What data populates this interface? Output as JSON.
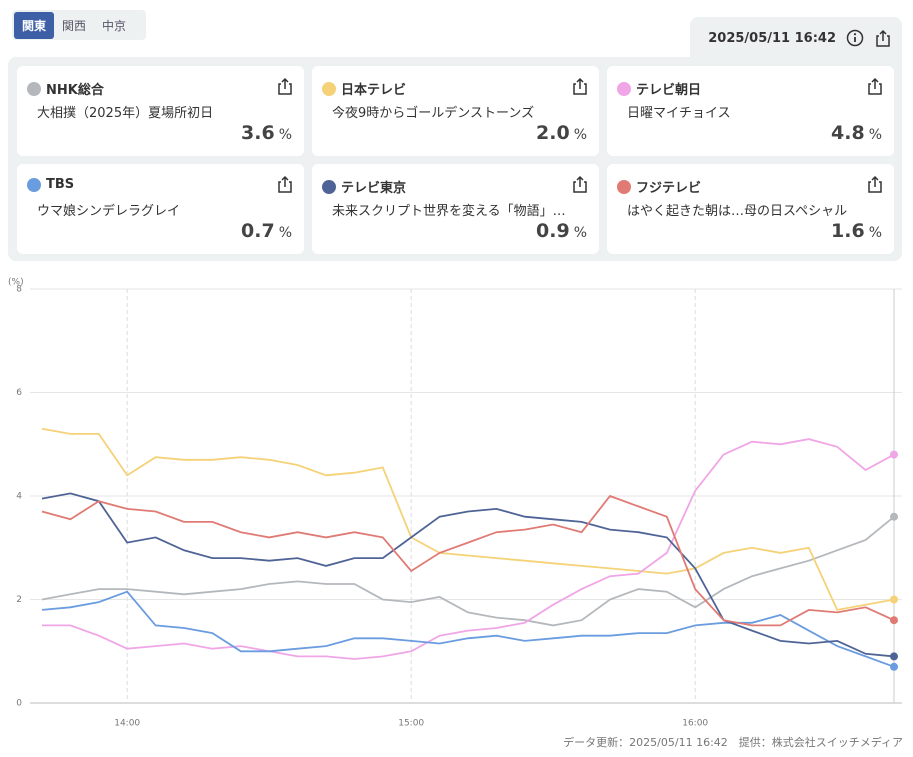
{
  "tabs": [
    "関東",
    "関西",
    "中京"
  ],
  "updated": "2025/05/11 16:42",
  "unit": "%",
  "cards": [
    {
      "name": "NHK総合",
      "program": "大相撲（2025年）夏場所初日",
      "rating": 3.6
    },
    {
      "name": "日本テレビ",
      "program": "今夜9時からゴールデンストーンズ",
      "rating": 2.0
    },
    {
      "name": "テレビ朝日",
      "program": "日曜マイチョイス",
      "rating": 4.8
    },
    {
      "name": "TBS",
      "program": "ウマ娘シンデレラグレイ",
      "rating": 0.7
    },
    {
      "name": "テレビ東京",
      "program": "未来スクリプト世界を変える「物語」…",
      "rating": 0.9
    },
    {
      "name": "フジテレビ",
      "program": "はやく起きた朝は…母の日スペシャル",
      "rating": 1.6
    }
  ],
  "footer": "データ更新：2025/05/11 16:42　提供：株式会社スイッチメディア",
  "chart_data": {
    "type": "line",
    "y_label": "(%)",
    "x": [
      "13:42",
      "13:48",
      "13:54",
      "14:00",
      "14:06",
      "14:12",
      "14:18",
      "14:24",
      "14:30",
      "14:36",
      "14:42",
      "14:48",
      "14:54",
      "15:00",
      "15:06",
      "15:12",
      "15:18",
      "15:24",
      "15:30",
      "15:36",
      "15:42",
      "15:48",
      "15:54",
      "16:00",
      "16:06",
      "16:12",
      "16:18",
      "16:24",
      "16:30",
      "16:36",
      "16:42"
    ],
    "xlim": [
      "13:42",
      "16:42"
    ],
    "xticks": [
      "14:00",
      "15:00",
      "16:00"
    ],
    "ylim": [
      0,
      8
    ],
    "yticks": [
      0,
      2,
      4,
      6,
      8
    ],
    "grid": true,
    "series": [
      {
        "color": "#b4b8bc",
        "values": [
          2.0,
          2.1,
          2.2,
          2.2,
          2.15,
          2.1,
          2.15,
          2.2,
          2.3,
          2.35,
          2.3,
          2.3,
          2.0,
          1.95,
          2.05,
          1.75,
          1.65,
          1.6,
          1.5,
          1.6,
          2.0,
          2.2,
          2.15,
          1.85,
          2.2,
          2.45,
          2.6,
          2.75,
          2.95,
          3.15,
          3.6
        ]
      },
      {
        "color": "#f5d278",
        "values": [
          5.3,
          5.2,
          5.2,
          4.4,
          4.75,
          4.7,
          4.7,
          4.75,
          4.7,
          4.6,
          4.4,
          4.45,
          4.55,
          3.2,
          2.9,
          2.85,
          2.8,
          2.75,
          2.7,
          2.65,
          2.6,
          2.55,
          2.5,
          2.6,
          2.9,
          3.0,
          2.9,
          3.0,
          1.8,
          1.9,
          2.0
        ]
      },
      {
        "color": "#f0a6e6",
        "values": [
          1.5,
          1.5,
          1.3,
          1.05,
          1.1,
          1.15,
          1.05,
          1.1,
          1.0,
          0.9,
          0.9,
          0.85,
          0.9,
          1.0,
          1.3,
          1.4,
          1.45,
          1.55,
          1.9,
          2.2,
          2.45,
          2.5,
          2.9,
          4.1,
          4.8,
          5.05,
          5.0,
          5.1,
          4.95,
          4.5,
          4.8
        ]
      },
      {
        "color": "#6a9ce0",
        "values": [
          1.8,
          1.85,
          1.95,
          2.15,
          1.5,
          1.45,
          1.35,
          1.0,
          1.0,
          1.05,
          1.1,
          1.25,
          1.25,
          1.2,
          1.15,
          1.25,
          1.3,
          1.2,
          1.25,
          1.3,
          1.3,
          1.35,
          1.35,
          1.5,
          1.55,
          1.55,
          1.7,
          1.4,
          1.1,
          0.9,
          0.7
        ]
      },
      {
        "color": "#4f6496",
        "values": [
          3.95,
          4.05,
          3.9,
          3.1,
          3.2,
          2.95,
          2.8,
          2.8,
          2.75,
          2.8,
          2.65,
          2.8,
          2.8,
          3.2,
          3.6,
          3.7,
          3.75,
          3.6,
          3.55,
          3.5,
          3.35,
          3.3,
          3.2,
          2.6,
          1.6,
          1.4,
          1.2,
          1.15,
          1.2,
          0.95,
          0.9
        ]
      },
      {
        "color": "#e07a74",
        "values": [
          3.7,
          3.55,
          3.9,
          3.75,
          3.7,
          3.5,
          3.5,
          3.3,
          3.2,
          3.3,
          3.2,
          3.3,
          3.2,
          2.55,
          2.9,
          3.1,
          3.3,
          3.35,
          3.45,
          3.3,
          4.0,
          3.8,
          3.6,
          2.2,
          1.6,
          1.5,
          1.5,
          1.8,
          1.75,
          1.85,
          1.6
        ]
      }
    ]
  }
}
